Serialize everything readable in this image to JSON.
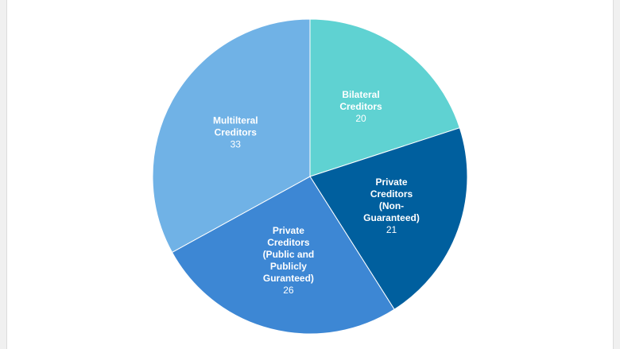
{
  "chart_data": {
    "type": "pie",
    "start_angle_deg": -90,
    "slices": [
      {
        "key": "bilateral",
        "lines": [
          "Bilateral",
          "Creditors"
        ],
        "value": 20,
        "color": "#5fd2d2"
      },
      {
        "key": "private-nonguaranteed",
        "lines": [
          "Private",
          "Creditors",
          "(Non-",
          "Guaranteed)"
        ],
        "value": 21,
        "color": "#005f9e"
      },
      {
        "key": "private-public",
        "lines": [
          "Private",
          "Creditors",
          "(Public and",
          "Publicly",
          "Guranteed)"
        ],
        "value": 26,
        "color": "#3d87d4"
      },
      {
        "key": "multilateral",
        "lines": [
          "Multilteral",
          "Creditors"
        ],
        "value": 33,
        "color": "#70b2e6"
      }
    ]
  }
}
